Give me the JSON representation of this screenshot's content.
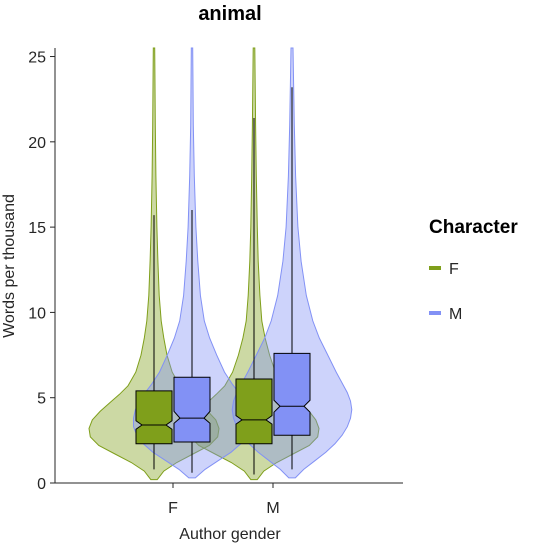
{
  "chart_data": {
    "type": "violin",
    "title": "animal",
    "xlabel": "Author gender",
    "ylabel": "Words per thousand",
    "ylim": [
      0,
      25.5
    ],
    "yticks": [
      0,
      5,
      10,
      15,
      20,
      25
    ],
    "categories": [
      "F",
      "M"
    ],
    "grid": false,
    "legend": {
      "title": "Character",
      "placement": "right",
      "entries": [
        {
          "label": "F",
          "color": "#7f9f1b"
        },
        {
          "label": "M",
          "color": "#8291f5"
        }
      ]
    },
    "colors": {
      "F": "#7f9f1b",
      "M": "#8291f5"
    },
    "series": [
      {
        "name": "F",
        "groups": [
          {
            "category": "F",
            "box": {
              "q1": 2.3,
              "median": 3.4,
              "q3": 5.4,
              "notch_low": 3.15,
              "notch_high": 3.65,
              "whisker_low": 0.8,
              "whisker_high": 15.7
            },
            "y_extent": [
              0.2,
              25.5
            ],
            "density": [
              [
                0.2,
                0.05
              ],
              [
                0.7,
                0.15
              ],
              [
                1.2,
                0.35
              ],
              [
                1.7,
                0.6
              ],
              [
                2.2,
                0.85
              ],
              [
                2.7,
                0.98
              ],
              [
                3.2,
                1.0
              ],
              [
                3.7,
                0.95
              ],
              [
                4.2,
                0.83
              ],
              [
                4.7,
                0.68
              ],
              [
                5.2,
                0.53
              ],
              [
                5.7,
                0.4
              ],
              [
                6.5,
                0.28
              ],
              [
                7.5,
                0.2
              ],
              [
                8.5,
                0.15
              ],
              [
                9.5,
                0.11
              ],
              [
                11,
                0.08
              ],
              [
                13,
                0.06
              ],
              [
                15,
                0.045
              ],
              [
                18,
                0.03
              ],
              [
                21,
                0.02
              ],
              [
                25.5,
                0.01
              ]
            ]
          },
          {
            "category": "M",
            "box": {
              "q1": 2.3,
              "median": 3.7,
              "q3": 6.1,
              "notch_low": 3.45,
              "notch_high": 3.95,
              "whisker_low": 0.5,
              "whisker_high": 21.4
            },
            "y_extent": [
              0.2,
              25.5
            ],
            "density": [
              [
                0.2,
                0.05
              ],
              [
                0.7,
                0.15
              ],
              [
                1.2,
                0.35
              ],
              [
                1.7,
                0.6
              ],
              [
                2.2,
                0.85
              ],
              [
                2.7,
                0.98
              ],
              [
                3.2,
                1.0
              ],
              [
                3.7,
                0.95
              ],
              [
                4.2,
                0.85
              ],
              [
                4.7,
                0.72
              ],
              [
                5.2,
                0.58
              ],
              [
                5.7,
                0.45
              ],
              [
                6.5,
                0.33
              ],
              [
                7.5,
                0.24
              ],
              [
                8.5,
                0.17
              ],
              [
                9.5,
                0.12
              ],
              [
                11,
                0.09
              ],
              [
                13,
                0.065
              ],
              [
                15,
                0.05
              ],
              [
                18,
                0.035
              ],
              [
                21,
                0.025
              ],
              [
                25.5,
                0.012
              ]
            ]
          }
        ]
      },
      {
        "name": "M",
        "groups": [
          {
            "category": "F",
            "box": {
              "q1": 2.4,
              "median": 3.8,
              "q3": 6.2,
              "notch_low": 3.5,
              "notch_high": 4.2,
              "whisker_low": 0.6,
              "whisker_high": 16.0
            },
            "y_extent": [
              0.3,
              25.5
            ],
            "density": [
              [
                0.3,
                0.05
              ],
              [
                0.8,
                0.2
              ],
              [
                1.3,
                0.4
              ],
              [
                1.8,
                0.6
              ],
              [
                2.3,
                0.75
              ],
              [
                2.8,
                0.85
              ],
              [
                3.3,
                0.9
              ],
              [
                3.8,
                0.9
              ],
              [
                4.3,
                0.87
              ],
              [
                4.8,
                0.8
              ],
              [
                5.3,
                0.72
              ],
              [
                5.8,
                0.62
              ],
              [
                6.5,
                0.5
              ],
              [
                7.5,
                0.38
              ],
              [
                8.5,
                0.27
              ],
              [
                9.5,
                0.19
              ],
              [
                11,
                0.13
              ],
              [
                13,
                0.09
              ],
              [
                15,
                0.06
              ],
              [
                18,
                0.035
              ],
              [
                21,
                0.02
              ],
              [
                25.5,
                0.01
              ]
            ]
          },
          {
            "category": "M",
            "box": {
              "q1": 2.8,
              "median": 4.5,
              "q3": 7.6,
              "notch_low": 4.15,
              "notch_high": 4.85,
              "whisker_low": 0.8,
              "whisker_high": 23.2
            },
            "y_extent": [
              0.3,
              25.5
            ],
            "density": [
              [
                0.3,
                0.05
              ],
              [
                0.8,
                0.18
              ],
              [
                1.3,
                0.35
              ],
              [
                1.8,
                0.52
              ],
              [
                2.3,
                0.66
              ],
              [
                2.8,
                0.77
              ],
              [
                3.3,
                0.85
              ],
              [
                3.8,
                0.9
              ],
              [
                4.3,
                0.92
              ],
              [
                4.8,
                0.9
              ],
              [
                5.3,
                0.85
              ],
              [
                5.8,
                0.78
              ],
              [
                6.5,
                0.68
              ],
              [
                7.5,
                0.55
              ],
              [
                8.5,
                0.42
              ],
              [
                9.5,
                0.32
              ],
              [
                11,
                0.22
              ],
              [
                13,
                0.14
              ],
              [
                15,
                0.09
              ],
              [
                18,
                0.055
              ],
              [
                21,
                0.035
              ],
              [
                25.5,
                0.015
              ]
            ]
          }
        ]
      }
    ]
  }
}
